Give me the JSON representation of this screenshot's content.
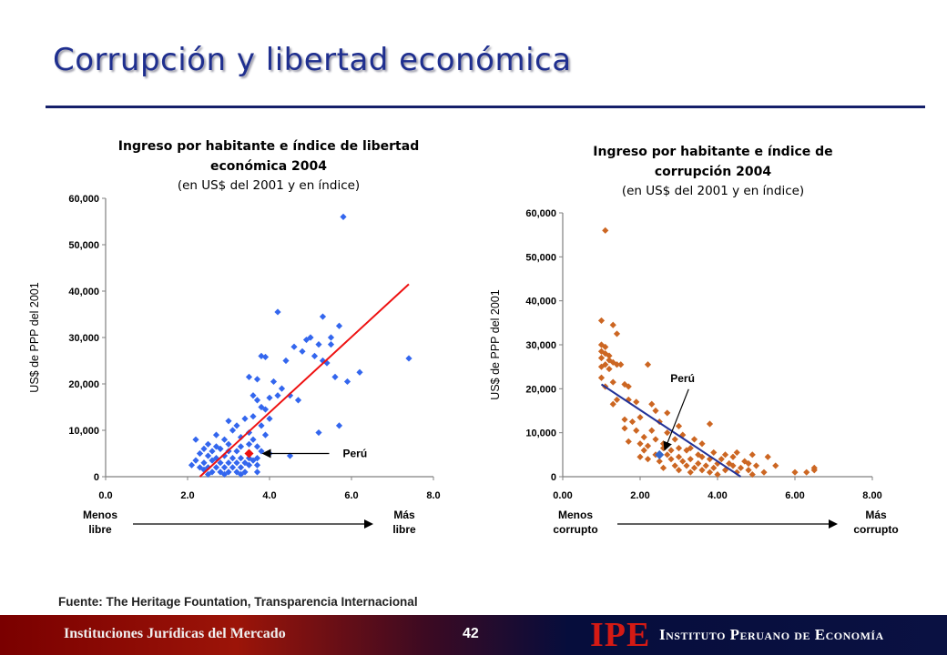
{
  "slide": {
    "title": "Corrupción y libertad económica",
    "source": "Fuente: The Heritage Fountation, Transparencia Internacional",
    "page_number": "42"
  },
  "footer": {
    "left_text": "Instituciones Jurídicas del Mercado",
    "logo_text": "IPE",
    "org_name": "Instituto Peruano de Economía"
  },
  "colors": {
    "title": "#1f2f8f",
    "left_points": "#3366ee",
    "left_trend": "#ee1111",
    "peru_left": "#ee1111",
    "right_points": "#cc6622",
    "right_trend": "#223399",
    "peru_right": "#3366cc"
  },
  "chart_data": [
    {
      "type": "scatter",
      "title": "Ingreso por habitante e índice de libertad económica 2004",
      "subtitle": "(en US$ del 2001 y en índice)",
      "xlabel": "",
      "ylabel": "US$ de PPP del 2001",
      "xlim": [
        0,
        8
      ],
      "ylim": [
        0,
        60000
      ],
      "x_ticks": [
        "0.0",
        "2.0",
        "4.0",
        "6.0",
        "8.0"
      ],
      "y_ticks": [
        "0",
        "10,000",
        "20,000",
        "30,000",
        "40,000",
        "50,000",
        "60,000"
      ],
      "grid": false,
      "low_label": "Menos libre",
      "high_label": "Más libre",
      "annotation": "Perú",
      "highlight_point": {
        "x": 3.5,
        "y": 5000
      },
      "trend_line": [
        [
          2.3,
          0
        ],
        [
          7.4,
          41500
        ]
      ],
      "points": [
        [
          5.8,
          56000
        ],
        [
          4.2,
          35500
        ],
        [
          5.3,
          34500
        ],
        [
          5.7,
          32500
        ],
        [
          7.4,
          25500
        ],
        [
          3.8,
          26000
        ],
        [
          3.9,
          25800
        ],
        [
          4.6,
          28000
        ],
        [
          4.9,
          29500
        ],
        [
          5.0,
          30000
        ],
        [
          5.2,
          28500
        ],
        [
          5.5,
          28500
        ],
        [
          5.5,
          30000
        ],
        [
          5.3,
          25000
        ],
        [
          4.4,
          25000
        ],
        [
          4.8,
          27000
        ],
        [
          5.1,
          26000
        ],
        [
          5.4,
          24500
        ],
        [
          5.6,
          21500
        ],
        [
          6.2,
          22500
        ],
        [
          5.9,
          20500
        ],
        [
          3.5,
          21500
        ],
        [
          3.7,
          21000
        ],
        [
          4.1,
          20500
        ],
        [
          4.3,
          19000
        ],
        [
          4.0,
          17000
        ],
        [
          4.2,
          17500
        ],
        [
          4.5,
          17500
        ],
        [
          4.7,
          16500
        ],
        [
          3.6,
          17500
        ],
        [
          3.7,
          16500
        ],
        [
          3.8,
          15000
        ],
        [
          3.9,
          14500
        ],
        [
          4.0,
          12500
        ],
        [
          3.6,
          13000
        ],
        [
          3.4,
          12500
        ],
        [
          3.0,
          12000
        ],
        [
          3.2,
          11000
        ],
        [
          3.8,
          11000
        ],
        [
          5.2,
          9500
        ],
        [
          5.7,
          11000
        ],
        [
          2.7,
          9000
        ],
        [
          3.1,
          10000
        ],
        [
          3.5,
          9500
        ],
        [
          3.9,
          9000
        ],
        [
          2.9,
          8000
        ],
        [
          3.3,
          8500
        ],
        [
          3.6,
          8000
        ],
        [
          2.2,
          8000
        ],
        [
          2.5,
          7000
        ],
        [
          2.7,
          6500
        ],
        [
          3.0,
          7000
        ],
        [
          3.3,
          6500
        ],
        [
          3.5,
          7000
        ],
        [
          3.7,
          6500
        ],
        [
          2.4,
          6000
        ],
        [
          2.6,
          5500
        ],
        [
          2.8,
          6000
        ],
        [
          3.0,
          5500
        ],
        [
          3.2,
          5500
        ],
        [
          3.8,
          5500
        ],
        [
          4.0,
          5000
        ],
        [
          4.5,
          4500
        ],
        [
          2.3,
          5000
        ],
        [
          2.5,
          4500
        ],
        [
          2.7,
          4000
        ],
        [
          2.9,
          4500
        ],
        [
          3.1,
          4000
        ],
        [
          3.3,
          4000
        ],
        [
          3.5,
          4000
        ],
        [
          3.7,
          4000
        ],
        [
          2.2,
          3500
        ],
        [
          2.4,
          3000
        ],
        [
          2.6,
          3500
        ],
        [
          2.8,
          3000
        ],
        [
          3.0,
          3000
        ],
        [
          3.2,
          3000
        ],
        [
          3.4,
          3000
        ],
        [
          3.6,
          3500
        ],
        [
          2.1,
          2500
        ],
        [
          2.3,
          2000
        ],
        [
          2.5,
          2000
        ],
        [
          2.7,
          2000
        ],
        [
          2.9,
          2000
        ],
        [
          3.1,
          2000
        ],
        [
          3.3,
          2000
        ],
        [
          3.5,
          2500
        ],
        [
          3.7,
          2500
        ],
        [
          2.4,
          1500
        ],
        [
          2.6,
          1000
        ],
        [
          2.8,
          1000
        ],
        [
          3.0,
          1000
        ],
        [
          3.2,
          1000
        ],
        [
          3.4,
          1000
        ],
        [
          2.5,
          500
        ],
        [
          2.9,
          500
        ],
        [
          3.3,
          500
        ],
        [
          3.7,
          1000
        ]
      ]
    },
    {
      "type": "scatter",
      "title": "Ingreso por habitante e índice de corrupción 2004",
      "subtitle": "(en US$ del 2001 y en índice)",
      "xlabel": "",
      "ylabel": "US$ de PPP del 2001",
      "xlim": [
        0,
        8
      ],
      "ylim": [
        0,
        60000
      ],
      "x_ticks": [
        "0.00",
        "2.00",
        "4.00",
        "6.00",
        "8.00"
      ],
      "y_ticks": [
        "0",
        "10,000",
        "20,000",
        "30,000",
        "40,000",
        "50,000",
        "60,000"
      ],
      "grid": false,
      "low_label": "Menos corrupto",
      "high_label": "Más corrupto",
      "annotation": "Perú",
      "highlight_point": {
        "x": 2.5,
        "y": 5000
      },
      "trend_line": [
        [
          1.0,
          21000
        ],
        [
          4.6,
          0
        ]
      ],
      "points": [
        [
          1.1,
          56000
        ],
        [
          1.0,
          35500
        ],
        [
          1.3,
          34500
        ],
        [
          1.4,
          32500
        ],
        [
          1.0,
          30000
        ],
        [
          1.1,
          29500
        ],
        [
          1.0,
          28500
        ],
        [
          1.1,
          28000
        ],
        [
          1.2,
          27500
        ],
        [
          1.0,
          27000
        ],
        [
          1.2,
          26500
        ],
        [
          1.3,
          26000
        ],
        [
          1.4,
          25500
        ],
        [
          1.5,
          25500
        ],
        [
          1.1,
          25500
        ],
        [
          1.0,
          25000
        ],
        [
          1.2,
          24500
        ],
        [
          2.2,
          25500
        ],
        [
          1.0,
          22500
        ],
        [
          1.3,
          21500
        ],
        [
          1.6,
          21000
        ],
        [
          1.7,
          20500
        ],
        [
          1.1,
          20500
        ],
        [
          1.4,
          17500
        ],
        [
          1.7,
          17500
        ],
        [
          1.9,
          17000
        ],
        [
          1.3,
          16500
        ],
        [
          2.3,
          16500
        ],
        [
          2.7,
          14500
        ],
        [
          2.4,
          15000
        ],
        [
          2.0,
          13500
        ],
        [
          1.6,
          13000
        ],
        [
          1.8,
          12500
        ],
        [
          2.5,
          12500
        ],
        [
          3.0,
          11500
        ],
        [
          3.8,
          12000
        ],
        [
          1.6,
          11000
        ],
        [
          1.9,
          10500
        ],
        [
          2.3,
          10500
        ],
        [
          2.7,
          10000
        ],
        [
          3.1,
          9500
        ],
        [
          2.1,
          9000
        ],
        [
          2.4,
          8500
        ],
        [
          2.9,
          8500
        ],
        [
          3.4,
          8500
        ],
        [
          1.7,
          8000
        ],
        [
          2.0,
          7500
        ],
        [
          2.6,
          7500
        ],
        [
          3.6,
          7500
        ],
        [
          2.2,
          7000
        ],
        [
          2.6,
          6500
        ],
        [
          3.0,
          6500
        ],
        [
          3.3,
          6500
        ],
        [
          2.1,
          6000
        ],
        [
          2.8,
          6000
        ],
        [
          3.2,
          6000
        ],
        [
          3.9,
          5500
        ],
        [
          4.5,
          5500
        ],
        [
          2.4,
          5000
        ],
        [
          2.7,
          5000
        ],
        [
          3.5,
          5000
        ],
        [
          4.2,
          5000
        ],
        [
          4.9,
          5000
        ],
        [
          2.0,
          4500
        ],
        [
          3.0,
          4500
        ],
        [
          3.6,
          4500
        ],
        [
          4.4,
          4500
        ],
        [
          5.3,
          4500
        ],
        [
          2.2,
          4000
        ],
        [
          2.8,
          4000
        ],
        [
          3.3,
          4000
        ],
        [
          3.8,
          4000
        ],
        [
          4.1,
          4000
        ],
        [
          4.7,
          3500
        ],
        [
          2.5,
          3500
        ],
        [
          3.1,
          3500
        ],
        [
          3.5,
          3000
        ],
        [
          4.0,
          3000
        ],
        [
          4.3,
          3000
        ],
        [
          4.8,
          3000
        ],
        [
          2.9,
          2500
        ],
        [
          3.2,
          2500
        ],
        [
          3.7,
          2500
        ],
        [
          4.4,
          2500
        ],
        [
          5.0,
          2500
        ],
        [
          5.5,
          2500
        ],
        [
          3.4,
          2000
        ],
        [
          3.9,
          2000
        ],
        [
          4.6,
          2000
        ],
        [
          2.6,
          2000
        ],
        [
          3.0,
          1500
        ],
        [
          3.6,
          1500
        ],
        [
          4.2,
          1500
        ],
        [
          4.8,
          1500
        ],
        [
          6.5,
          1500
        ],
        [
          6.5,
          2000
        ],
        [
          3.3,
          1000
        ],
        [
          3.8,
          1000
        ],
        [
          4.5,
          1000
        ],
        [
          5.2,
          1000
        ],
        [
          6.0,
          1000
        ],
        [
          6.3,
          1000
        ],
        [
          4.0,
          500
        ],
        [
          4.9,
          500
        ]
      ]
    }
  ]
}
